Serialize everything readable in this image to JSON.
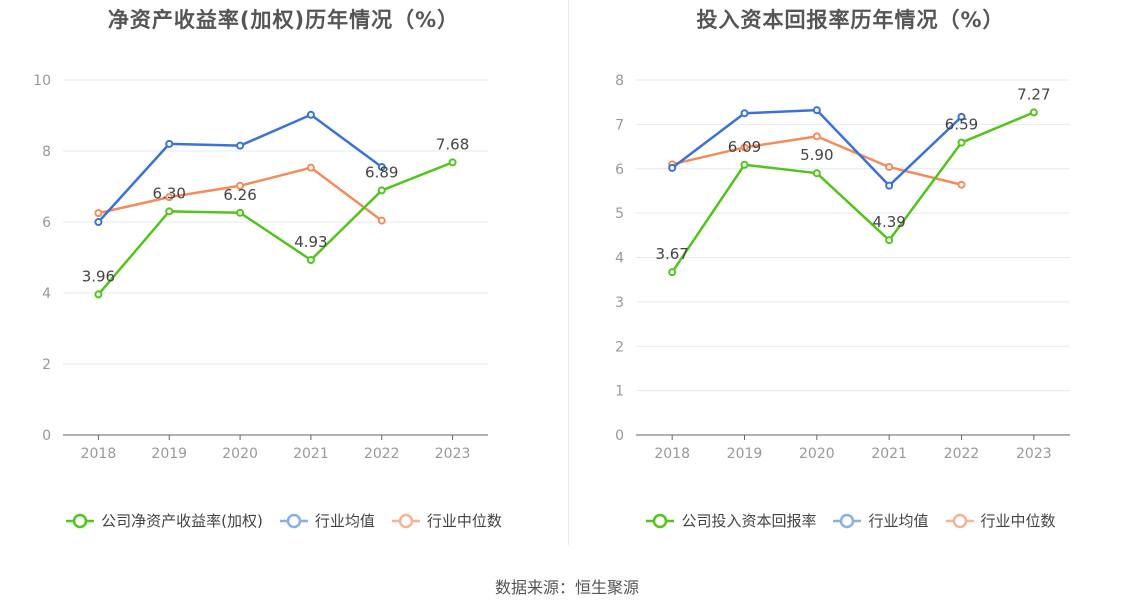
{
  "source": "数据来源：恒生聚源",
  "colors": {
    "company": "#52c41a",
    "avg": "#3a72d8",
    "median": "#f28c5a",
    "legend_avg": "#8aaee8",
    "legend_median": "#f7b393"
  },
  "chart_data": [
    {
      "type": "line",
      "title": "净资产收益率(加权)历年情况（%）",
      "categories": [
        "2018",
        "2019",
        "2020",
        "2021",
        "2022",
        "2023"
      ],
      "ylim": [
        0,
        10
      ],
      "yticks": [
        0,
        2,
        4,
        6,
        8,
        10
      ],
      "grid": true,
      "legend_position": "bottom",
      "series": [
        {
          "name": "公司净资产收益率(加权)",
          "key": "company",
          "values": [
            3.96,
            6.3,
            6.26,
            4.93,
            6.89,
            7.68
          ],
          "labels": [
            "3.96",
            "6.30",
            "6.26",
            "4.93",
            "6.89",
            "7.68"
          ]
        },
        {
          "name": "行业均值",
          "key": "avg",
          "values": [
            6.0,
            8.2,
            8.15,
            9.02,
            7.55,
            null
          ]
        },
        {
          "name": "行业中位数",
          "key": "median",
          "values": [
            6.25,
            6.7,
            7.02,
            7.53,
            6.04,
            null
          ]
        }
      ]
    },
    {
      "type": "line",
      "title": "投入资本回报率历年情况（%）",
      "categories": [
        "2018",
        "2019",
        "2020",
        "2021",
        "2022",
        "2023"
      ],
      "ylim": [
        0,
        8
      ],
      "yticks": [
        0,
        1,
        2,
        3,
        4,
        5,
        6,
        7,
        8
      ],
      "grid": true,
      "legend_position": "bottom",
      "series": [
        {
          "name": "公司投入资本回报率",
          "key": "company",
          "values": [
            3.67,
            6.09,
            5.9,
            4.39,
            6.59,
            7.27
          ],
          "labels": [
            "3.67",
            "6.09",
            "5.90",
            "4.39",
            "6.59",
            "7.27"
          ]
        },
        {
          "name": "行业均值",
          "key": "avg",
          "values": [
            6.02,
            7.25,
            7.32,
            5.62,
            7.17,
            null
          ]
        },
        {
          "name": "行业中位数",
          "key": "median",
          "values": [
            6.1,
            6.48,
            6.73,
            6.04,
            5.64,
            null
          ]
        }
      ]
    }
  ]
}
